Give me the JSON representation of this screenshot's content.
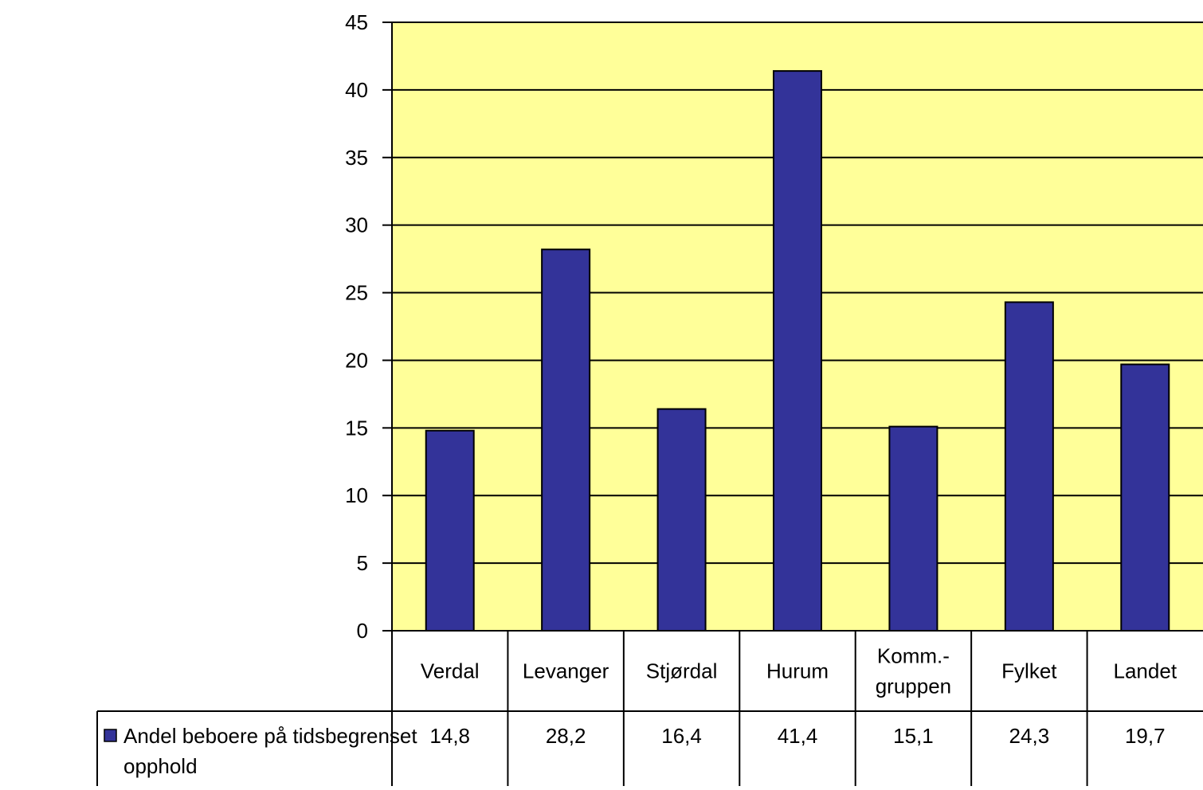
{
  "chart_data": {
    "type": "bar",
    "categories": [
      "Verdal",
      "Levanger",
      "Stjørdal",
      "Hurum",
      "Komm.-gruppen",
      "Fylket",
      "Landet"
    ],
    "category_label_lines": [
      [
        "Verdal"
      ],
      [
        "Levanger"
      ],
      [
        "Stjørdal"
      ],
      [
        "Hurum"
      ],
      [
        "Komm.-",
        "gruppen"
      ],
      [
        "Fylket"
      ],
      [
        "Landet"
      ]
    ],
    "series": [
      {
        "name": "Andel beboere på tidsbegrenset opphold",
        "name_lines": [
          "Andel beboere på tidsbegrenset",
          "opphold"
        ],
        "values": [
          14.8,
          28.2,
          16.4,
          41.4,
          15.1,
          24.3,
          19.7
        ],
        "value_labels": [
          "14,8",
          "28,2",
          "16,4",
          "41,4",
          "15,1",
          "24,3",
          "19,7"
        ]
      }
    ],
    "y_ticks": [
      "0",
      "5",
      "10",
      "15",
      "20",
      "25",
      "30",
      "35",
      "40",
      "45"
    ],
    "ylim": [
      0,
      45
    ],
    "grid": true,
    "legend": "data-table-left",
    "data_table": true,
    "title": "",
    "xlabel": "",
    "ylabel": ""
  },
  "colors": {
    "plot_background": "#FFFF99",
    "bar_fill": "#333399",
    "gridline": "#000000",
    "axis": "#000000"
  }
}
